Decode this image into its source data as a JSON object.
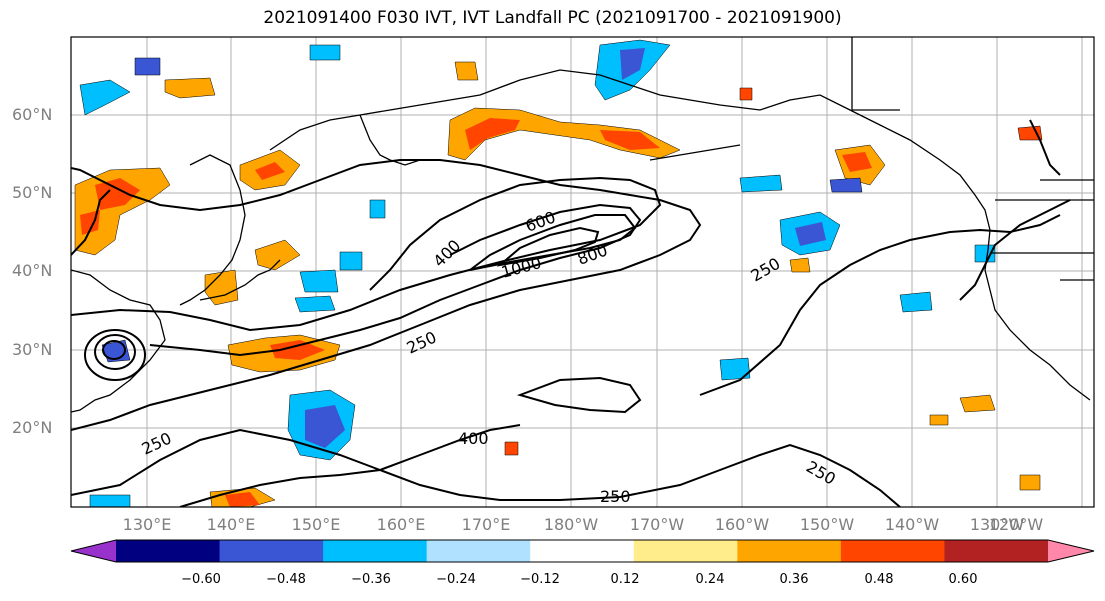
{
  "title": "2021091400 F030 IVT, IVT Landfall PC (2021091700 - 2021091900)",
  "lat_labels": [
    "60°N",
    "50°N",
    "40°N",
    "30°N",
    "20°N"
  ],
  "lon_labels": [
    "130°E",
    "140°E",
    "150°E",
    "160°E",
    "170°E",
    "180°W",
    "170°W",
    "160°W",
    "150°W",
    "140°W",
    "130°W",
    "120°W"
  ],
  "contour_labels": [
    "250",
    "400",
    "600",
    "800",
    "1000",
    "250",
    "400",
    "250",
    "250",
    "250"
  ],
  "colorbar": {
    "colors": [
      "#9932cc",
      "#000080",
      "#3a56d4",
      "#00bfff",
      "#b0e2ff",
      "#ffffff",
      "#ffec8b",
      "#ffa500",
      "#ff4500",
      "#b22222",
      "#ff88aa"
    ],
    "tick_labels": [
      "−0.60",
      "−0.48",
      "−0.36",
      "−0.24",
      "−0.12",
      "0.12",
      "0.24",
      "0.36",
      "0.48",
      "0.60"
    ]
  }
}
